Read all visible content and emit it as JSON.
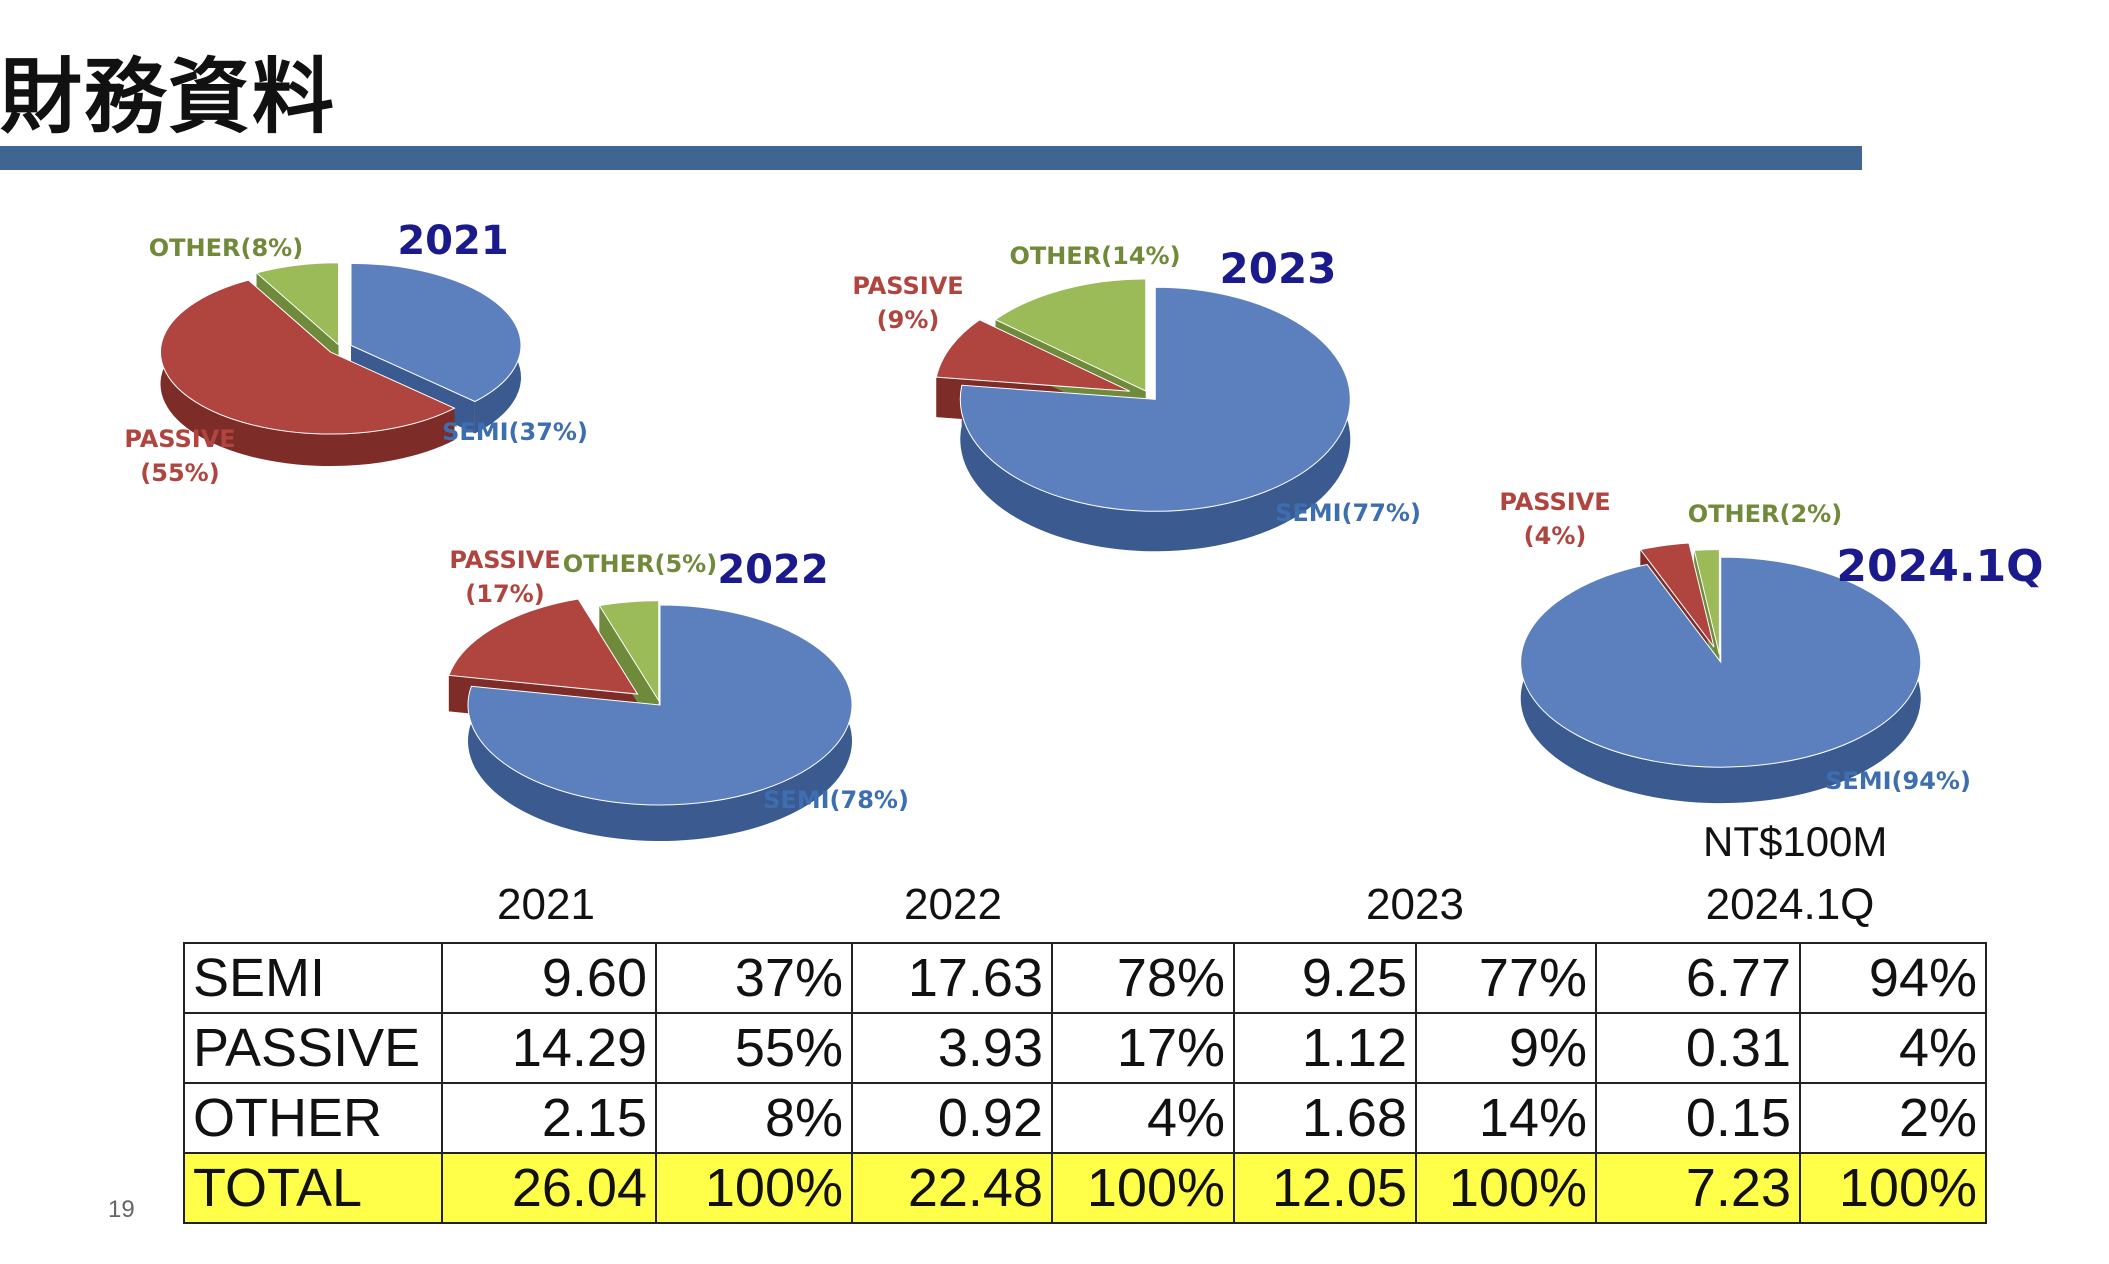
{
  "page": {
    "title": "財務資料",
    "page_number": "19",
    "unit": "NT$100M"
  },
  "colors": {
    "semi": "#5b80bd",
    "passive": "#b0443f",
    "other": "#9bba58",
    "header_bar": "#3f6592",
    "total_row": "#ffff4a",
    "chart_title": "#1a1a8c"
  },
  "chart_data": [
    {
      "type": "pie",
      "title": "2021",
      "labels": [
        "SEMI(37%)",
        "PASSIVE (55%)",
        "OTHER(8%)"
      ],
      "categories": [
        "SEMI",
        "PASSIVE",
        "OTHER"
      ],
      "values": [
        37,
        55,
        8
      ]
    },
    {
      "type": "pie",
      "title": "2022",
      "labels": [
        "SEMI(78%)",
        "PASSIVE (17%)",
        "OTHER(5%)"
      ],
      "categories": [
        "SEMI",
        "PASSIVE",
        "OTHER"
      ],
      "values": [
        78,
        17,
        5
      ]
    },
    {
      "type": "pie",
      "title": "2023",
      "labels": [
        "SEMI(77%)",
        "PASSIVE (9%)",
        "OTHER(14%)"
      ],
      "categories": [
        "SEMI",
        "PASSIVE",
        "OTHER"
      ],
      "values": [
        77,
        9,
        14
      ]
    },
    {
      "type": "pie",
      "title": "2024.1Q",
      "labels": [
        "SEMI(94%)",
        "PASSIVE (4%)",
        "OTHER(2%)"
      ],
      "categories": [
        "SEMI",
        "PASSIVE",
        "OTHER"
      ],
      "values": [
        94,
        4,
        2
      ]
    }
  ],
  "table": {
    "years": [
      "2021",
      "2022",
      "2023",
      "2024.1Q"
    ],
    "rows": [
      {
        "label": "SEMI",
        "cells": [
          "9.60",
          "37%",
          "17.63",
          "78%",
          "9.25",
          "77%",
          "6.77",
          "94%"
        ]
      },
      {
        "label": "PASSIVE",
        "cells": [
          "14.29",
          "55%",
          "3.93",
          "17%",
          "1.12",
          "9%",
          "0.31",
          "4%"
        ]
      },
      {
        "label": "OTHER",
        "cells": [
          "2.15",
          "8%",
          "0.92",
          "4%",
          "1.68",
          "14%",
          "0.15",
          "2%"
        ]
      },
      {
        "label": "TOTAL",
        "cells": [
          "26.04",
          "100%",
          "22.48",
          "100%",
          "12.05",
          "100%",
          "7.23",
          "100%"
        ]
      }
    ]
  }
}
